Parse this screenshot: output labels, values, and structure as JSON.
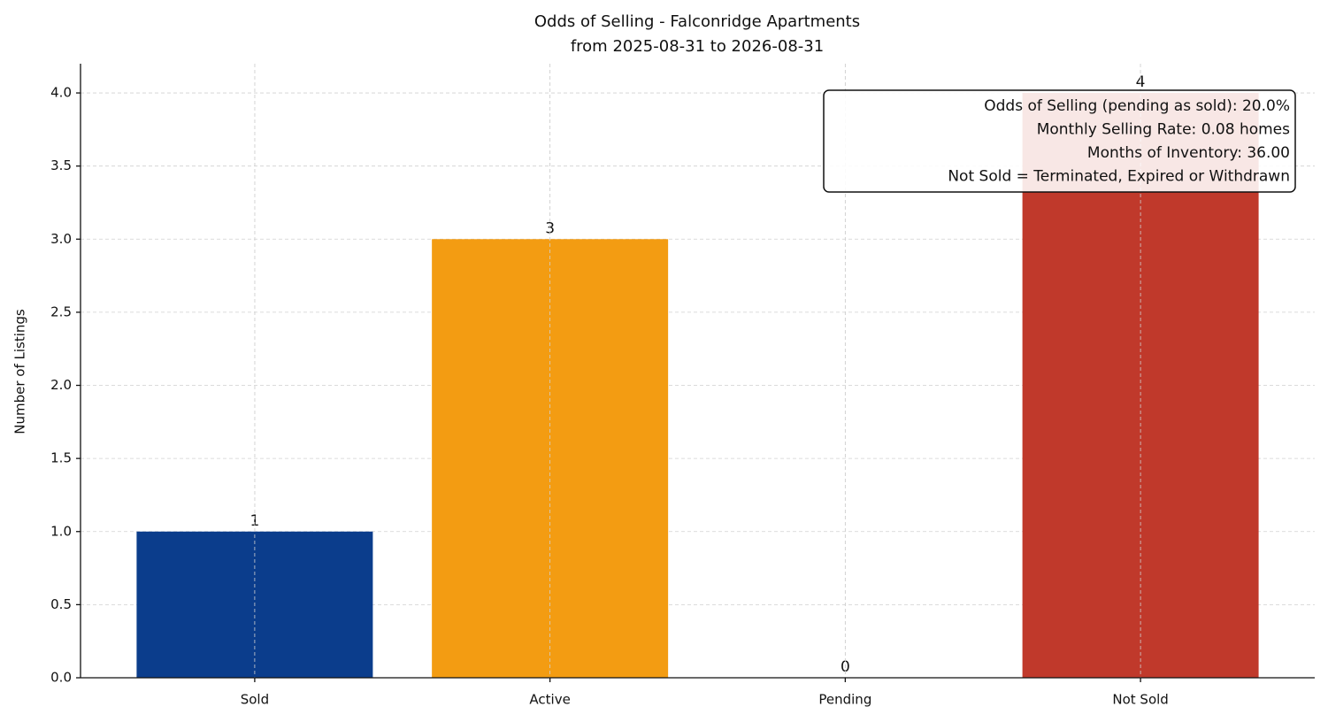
{
  "chart_data": {
    "type": "bar",
    "title": [
      "Odds of Selling - Falconridge Apartments",
      "from 2025-08-31 to 2026-08-31"
    ],
    "y_label": "Number of Listings",
    "categories": [
      "Sold",
      "Active",
      "Pending",
      "Not Sold"
    ],
    "values": [
      1,
      3,
      0,
      4
    ],
    "colors": [
      "#0b3d8c",
      "#f39c12",
      "#27ae60",
      "#c0392b"
    ],
    "ylim": [
      0,
      4.2
    ],
    "yticks": [
      {
        "value": 0,
        "label": "0.0"
      },
      0.5,
      {
        "value": 1,
        "label": "1.0"
      },
      1.5,
      {
        "value": 2,
        "label": "2.0"
      },
      2.5,
      {
        "value": 3,
        "label": "3.0"
      },
      3.5,
      {
        "value": 4,
        "label": "4.0"
      }
    ],
    "grid": true,
    "annotation": [
      "Odds of Selling (pending as sold): 20.0%",
      "Monthly Selling Rate: 0.08 homes",
      "Months of Inventory: 36.00",
      "Not Sold = Terminated, Expired or Withdrawn"
    ]
  }
}
